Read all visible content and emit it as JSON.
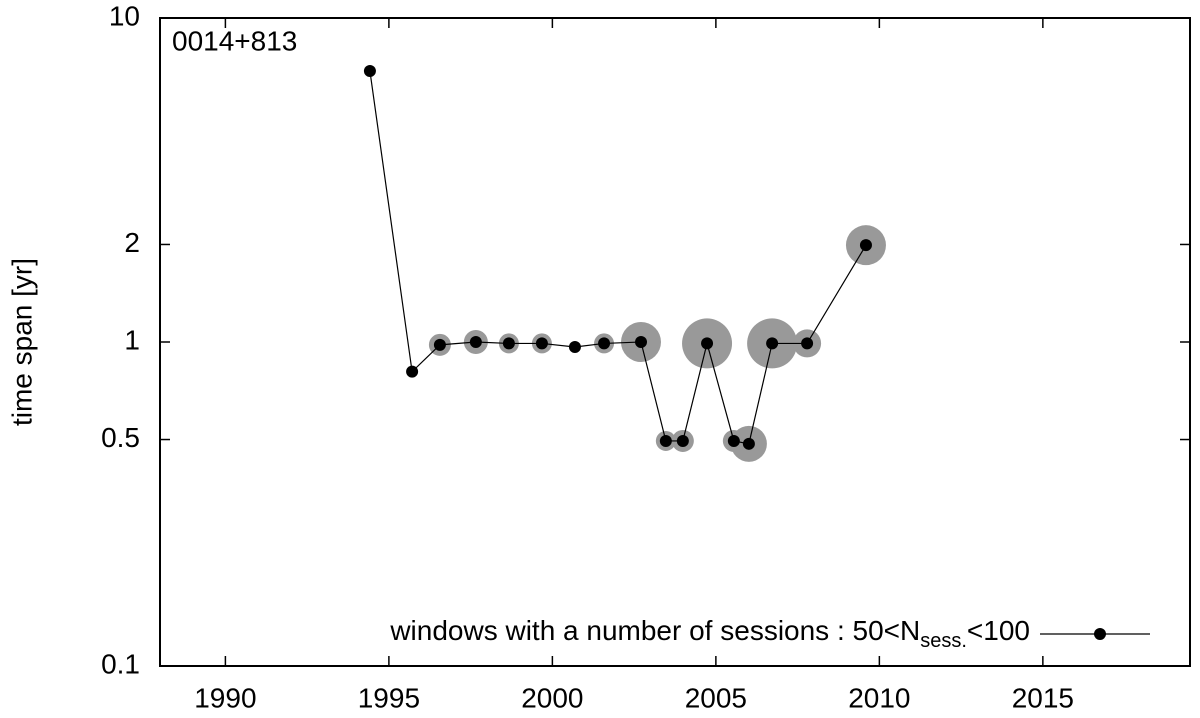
{
  "chart_data": {
    "type": "scatter",
    "annotation": "0014+813",
    "ylabel": "time span [yr]",
    "xlim": [
      1988,
      2019.5
    ],
    "xticks": [
      1990,
      1995,
      2000,
      2005,
      2010,
      2015
    ],
    "ylim": [
      0.1,
      10
    ],
    "yticks": [
      0.1,
      0.5,
      1,
      2,
      10
    ],
    "ylog": true,
    "legend": {
      "text": "windows with a number of sessions : 50<N",
      "subscript": "sess.",
      "suffix": "<100",
      "position": "bottom right"
    },
    "series": [
      {
        "color": "#000000",
        "size_color": "#999999",
        "x": [
          1994.42,
          1995.71,
          1996.56,
          1997.66,
          1998.67,
          1999.68,
          2000.69,
          2001.58,
          2002.71,
          2003.47,
          2003.99,
          2004.73,
          2005.55,
          2006.01,
          2006.72,
          2007.79,
          2009.59
        ],
        "values": [
          6.86,
          0.81,
          0.98,
          1.0,
          0.99,
          0.99,
          0.965,
          0.99,
          1.0,
          0.495,
          0.495,
          0.99,
          0.495,
          0.485,
          0.99,
          0.99,
          1.99
        ],
        "sizes": [
          0,
          0,
          11,
          12,
          10,
          10,
          0,
          10,
          20,
          10,
          11,
          25,
          11,
          18,
          25,
          14,
          20
        ]
      }
    ]
  }
}
